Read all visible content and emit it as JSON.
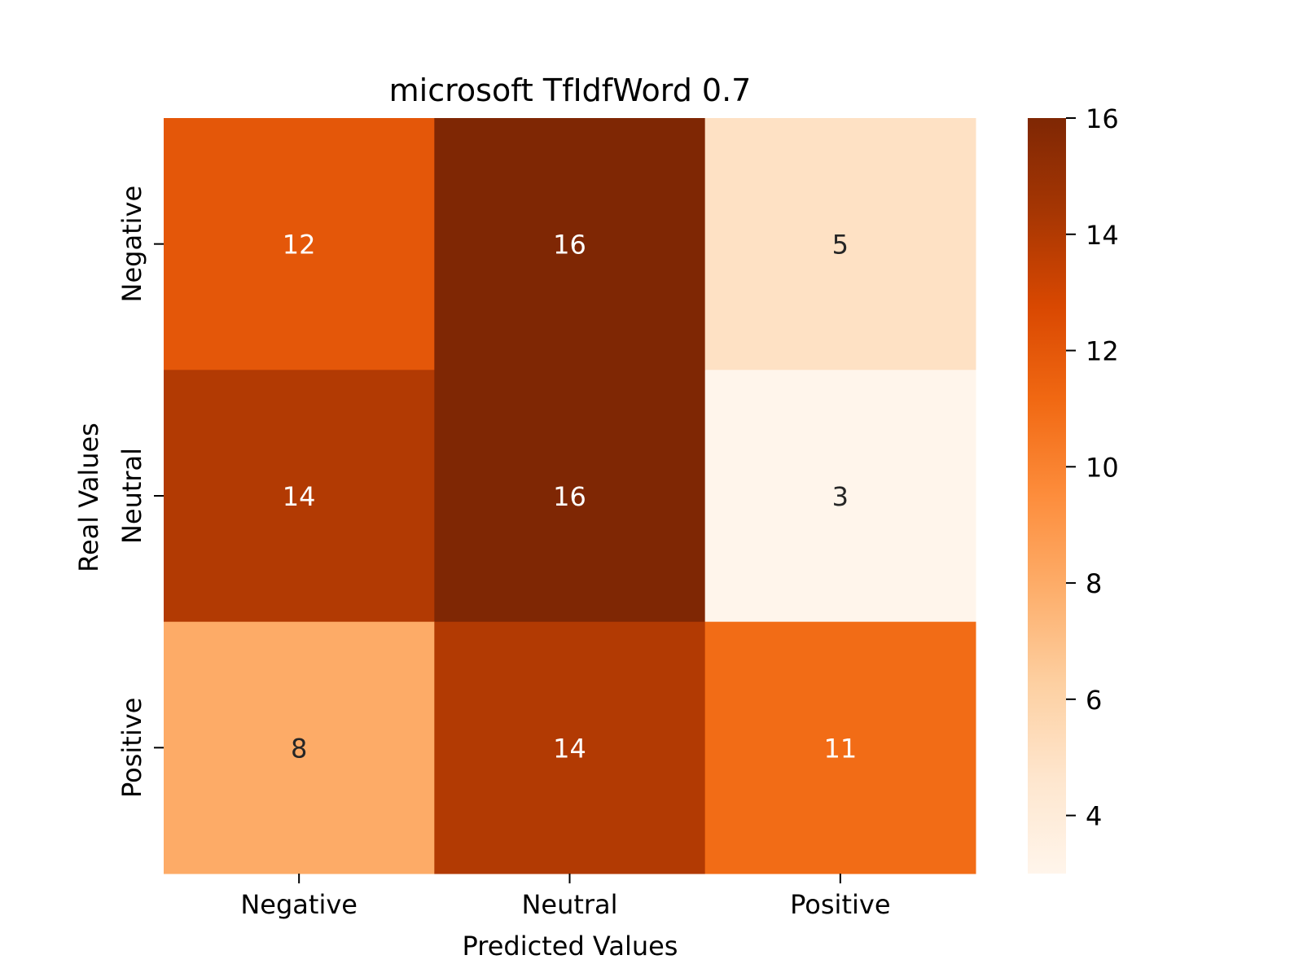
{
  "chart_data": {
    "type": "heatmap",
    "title": "microsoft TfIdfWord 0.7",
    "xlabel": "Predicted Values",
    "ylabel": "Real Values",
    "x_categories": [
      "Negative",
      "Neutral",
      "Positive"
    ],
    "y_categories": [
      "Negative",
      "Neutral",
      "Positive"
    ],
    "values": [
      [
        12,
        16,
        5
      ],
      [
        14,
        16,
        3
      ],
      [
        8,
        14,
        11
      ]
    ],
    "colorbar": {
      "range": [
        3,
        16
      ],
      "ticks": [
        "4",
        "6",
        "8",
        "10",
        "12",
        "14",
        "16"
      ],
      "colormap": "Oranges"
    },
    "grid": false
  }
}
